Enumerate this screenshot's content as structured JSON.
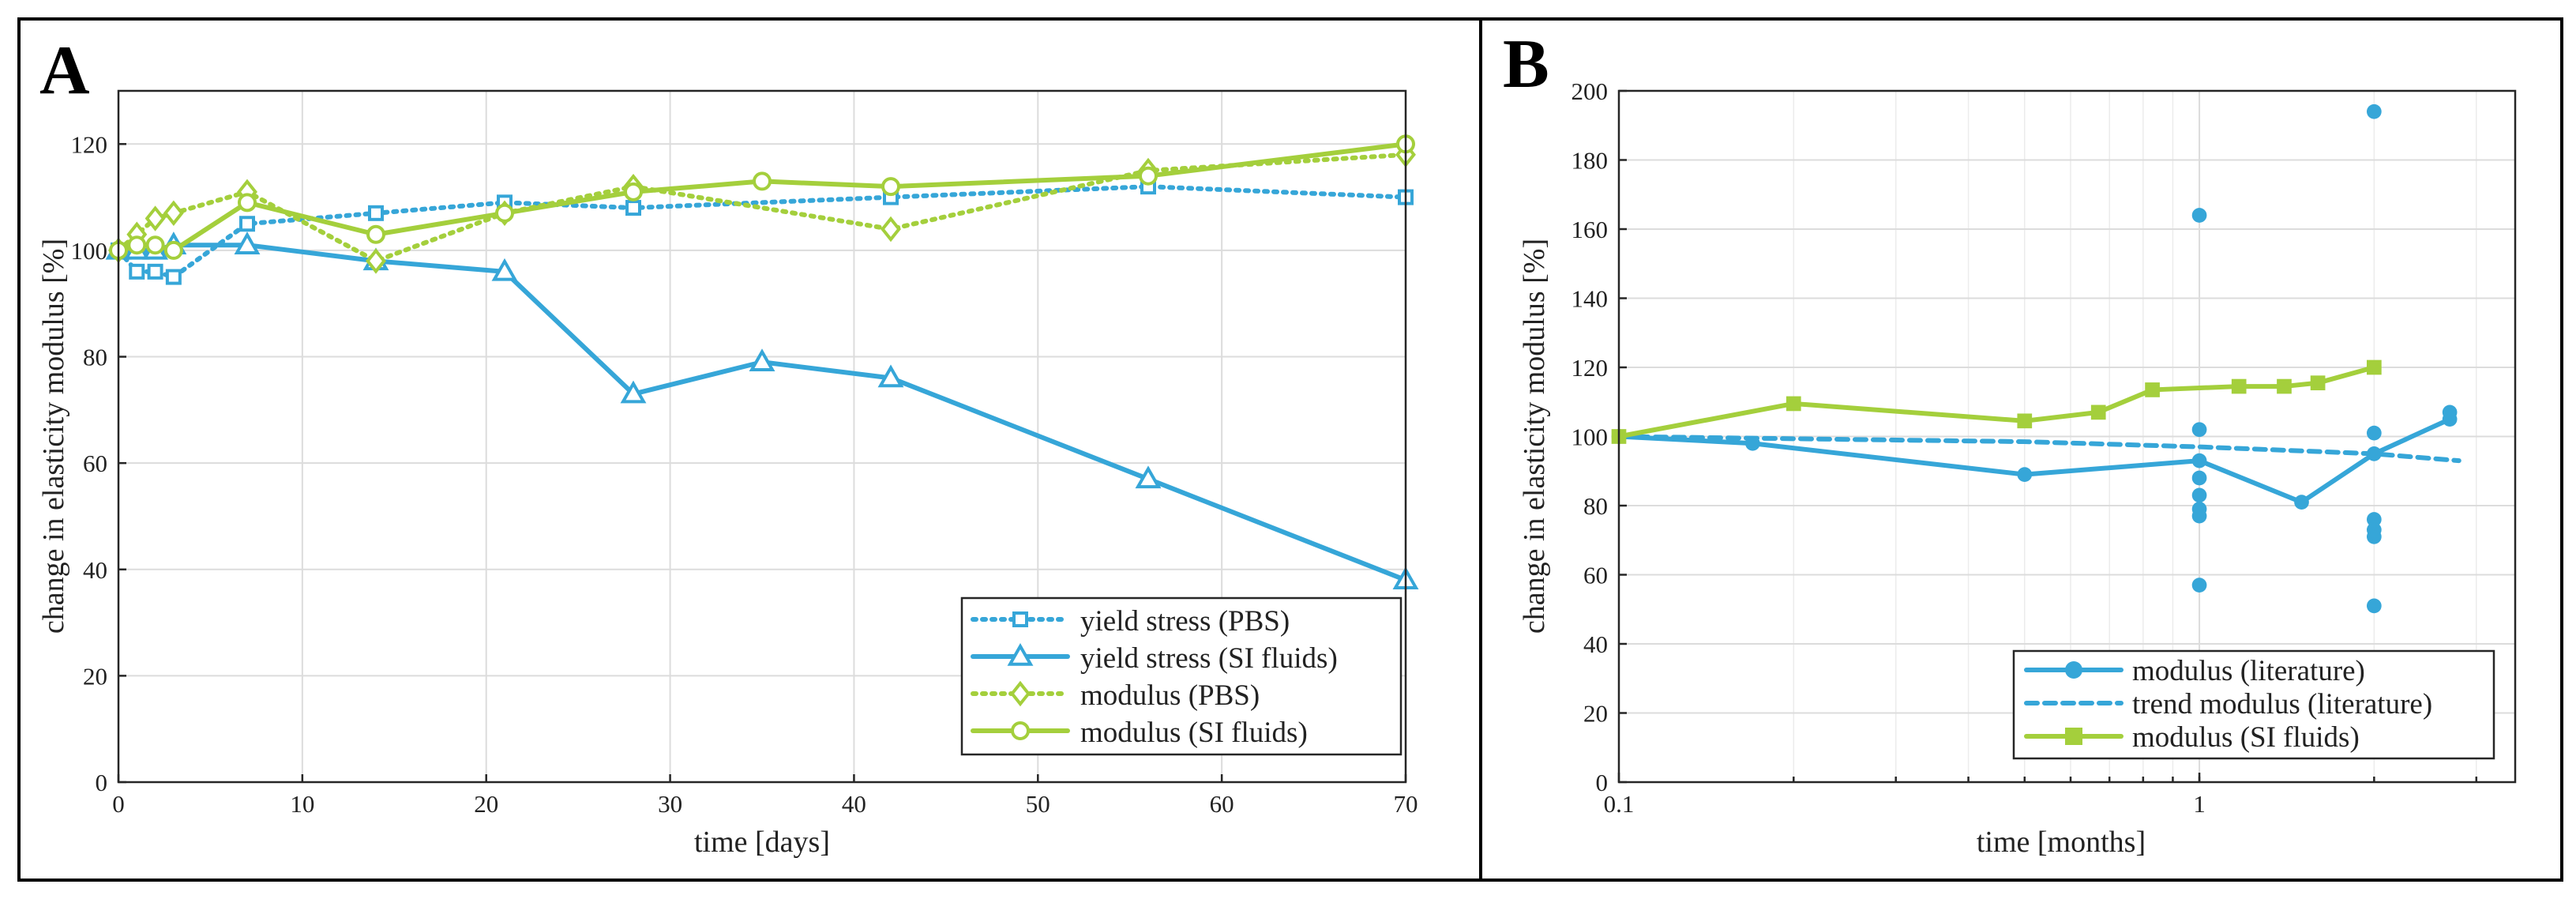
{
  "colors": {
    "blue": "#36a6d8",
    "green": "#a4cf3c",
    "black": "#000000"
  },
  "chart_data": [
    {
      "panel": "A",
      "type": "line",
      "xlabel": "time [days]",
      "ylabel": "change in elasticity modulus [%]",
      "xlim": [
        0,
        70
      ],
      "ylim": [
        0,
        130
      ],
      "xticks": [
        0,
        10,
        20,
        30,
        40,
        50,
        60,
        70
      ],
      "yticks": [
        0,
        20,
        40,
        60,
        80,
        100,
        120
      ],
      "grid": true,
      "legend_position": "bottom-right",
      "series": [
        {
          "name": "yield stress (PBS)",
          "color": "blue",
          "style": "dotted",
          "marker": "square",
          "x": [
            0,
            1,
            2,
            3,
            7,
            14,
            21,
            28,
            42,
            56,
            70
          ],
          "y": [
            100,
            96,
            96,
            95,
            105,
            107,
            109,
            108,
            110,
            112,
            110
          ]
        },
        {
          "name": "yield stress (SI fluids)",
          "color": "blue",
          "style": "solid",
          "marker": "triangle",
          "x": [
            0,
            1,
            2,
            3,
            7,
            14,
            21,
            28,
            35,
            42,
            56,
            70
          ],
          "y": [
            100,
            100,
            100,
            101,
            101,
            98,
            96,
            73,
            79,
            76,
            57,
            38
          ]
        },
        {
          "name": "modulus (PBS)",
          "color": "green",
          "style": "dotted",
          "marker": "diamond",
          "x": [
            0,
            1,
            2,
            3,
            7,
            14,
            21,
            28,
            42,
            56,
            70
          ],
          "y": [
            100,
            103,
            106,
            107,
            111,
            98,
            107,
            112,
            104,
            115,
            118
          ]
        },
        {
          "name": "modulus (SI fluids)",
          "color": "green",
          "style": "solid",
          "marker": "circle",
          "x": [
            0,
            1,
            2,
            3,
            7,
            14,
            21,
            28,
            35,
            42,
            56,
            70
          ],
          "y": [
            100,
            101,
            101,
            100,
            109,
            103,
            107,
            111,
            113,
            112,
            114,
            120
          ]
        }
      ]
    },
    {
      "panel": "B",
      "type": "line",
      "xscale": "log",
      "xlabel": "time [months]",
      "ylabel": "change in elasticity modulus [%]",
      "xlim": [
        0.1,
        3.5
      ],
      "ylim": [
        0,
        200
      ],
      "xtick_labels": [
        {
          "value": 0.1,
          "label": "0.1"
        },
        {
          "value": 1,
          "label": "1"
        }
      ],
      "yticks": [
        0,
        20,
        40,
        60,
        80,
        100,
        120,
        140,
        160,
        180,
        200
      ],
      "grid": true,
      "legend_position": "bottom-center",
      "series": [
        {
          "name": "modulus (literature)",
          "color": "blue",
          "style": "solid",
          "marker": "filled-circle",
          "x": [
            0.1,
            0.17,
            0.5,
            1,
            1.5,
            2,
            2.7
          ],
          "y": [
            100,
            98,
            89,
            93,
            81,
            95,
            105
          ]
        },
        {
          "name": "modulus (literature) scatter",
          "color": "blue",
          "style": "none",
          "marker": "filled-circle",
          "in_legend": false,
          "x": [
            1,
            1,
            1,
            1,
            1,
            1,
            1,
            2,
            2,
            2,
            2,
            2,
            2,
            2.7
          ],
          "y": [
            164,
            102,
            88,
            83,
            79,
            77,
            57,
            194,
            101,
            76,
            73,
            71,
            51,
            107
          ]
        },
        {
          "name": "trend modulus (literature)",
          "color": "blue",
          "style": "dashed",
          "marker": "none",
          "x": [
            0.1,
            0.5,
            1,
            2,
            2.8
          ],
          "y": [
            100,
            98.5,
            97,
            95,
            93
          ]
        },
        {
          "name": "modulus (SI fluids)",
          "color": "green",
          "style": "solid",
          "marker": "filled-square",
          "x": [
            0.1,
            0.2,
            0.5,
            0.67,
            0.83,
            1.17,
            1.4,
            1.6,
            2
          ],
          "y": [
            100,
            109.5,
            104.5,
            107,
            113.5,
            114.5,
            114.5,
            115.5,
            120
          ]
        }
      ]
    }
  ]
}
